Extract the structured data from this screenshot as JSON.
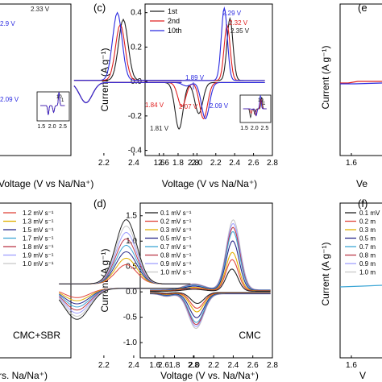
{
  "figure": {
    "axis_label_x": "Voltage (V vs Na/Na⁺)",
    "axis_label_x_bottom_left": "rs. Na/Na⁺)",
    "axis_label_x_right_top": "Ve",
    "axis_label_x_right_bottom": "V",
    "axis_label_y": "Current (A g⁻¹)",
    "panel_label_c": "(c)",
    "panel_label_d": "(d)",
    "panel_label_e": "(e",
    "panel_label_f": "(f)",
    "label_cmc_sbr": "CMC+SBR",
    "label_cmc": "CMC"
  },
  "chart_data": [
    {
      "panel": "c",
      "type": "line",
      "xlabel": "Voltage (V vs Na/Na⁺)",
      "ylabel": "Current (A g⁻¹)",
      "xlim": [
        1.45,
        2.8
      ],
      "ylim": [
        -0.43,
        0.45
      ],
      "xticks": [
        "1.6",
        "1.8",
        "2.0",
        "2.2",
        "2.4",
        "2.6",
        "2.8"
      ],
      "yticks": [
        "0.4",
        "0.2",
        "0.0",
        "-0.2",
        "-0.4"
      ],
      "legend_position": "top-left",
      "series": [
        {
          "name": "1st",
          "color": "#222222",
          "ox_peak": [
            2.35,
            0.36
          ],
          "red_peaks": [
            [
              1.81,
              -0.27
            ],
            [
              2.02,
              -0.18
            ]
          ]
        },
        {
          "name": "2nd",
          "color": "#e02020",
          "ox_peak": [
            2.32,
            0.32
          ],
          "red_peaks": [
            [
              1.84,
              -0.14
            ],
            [
              2.07,
              -0.21
            ]
          ]
        },
        {
          "name": "10th",
          "color": "#2a2ae0",
          "ox_peak": [
            2.29,
            0.42
          ],
          "red_peaks": [
            [
              1.89,
              -0.02
            ],
            [
              2.09,
              -0.21
            ]
          ]
        }
      ],
      "annotations": [
        {
          "text": "2.29 V",
          "color": "#2a2ae0"
        },
        {
          "text": "2.32 V",
          "color": "#e02020"
        },
        {
          "text": "2.35 V",
          "color": "#222222"
        },
        {
          "text": "1.89 V",
          "color": "#2a2ae0"
        },
        {
          "text": "1.84 V",
          "color": "#e02020"
        },
        {
          "text": "2.07 V",
          "color": "#e02020"
        },
        {
          "text": "2.09 V",
          "color": "#2a2ae0"
        },
        {
          "text": "1.81 V",
          "color": "#222222"
        }
      ],
      "inset": {
        "xticks": [
          "1.5",
          "2.0",
          "2.5"
        ],
        "labels": [
          "10",
          "1"
        ]
      }
    },
    {
      "panel": "d",
      "type": "line",
      "xlabel": "Voltage (V vs. Na/Na⁺)",
      "ylabel": "Current (A g⁻¹)",
      "xlim": [
        1.45,
        2.8
      ],
      "ylim": [
        -1.3,
        1.75
      ],
      "xticks": [
        "1.6",
        "1.8",
        "2.0",
        "2.2",
        "2.4",
        "2.6",
        "2.8"
      ],
      "yticks": [
        "1.5",
        "1.0",
        "0.5",
        "0.0",
        "-0.5",
        "-1.0"
      ],
      "legend_position": "top-left",
      "series": [
        {
          "name": "0.1 mV s⁻¹",
          "color": "#222222",
          "scan_rate": 0.1
        },
        {
          "name": "0.2 mV s⁻¹",
          "color": "#e0463c",
          "scan_rate": 0.2
        },
        {
          "name": "0.3 mV s⁻¹",
          "color": "#e0b000",
          "scan_rate": 0.3
        },
        {
          "name": "0.5 mV s⁻¹",
          "color": "#2a2a8a",
          "scan_rate": 0.5
        },
        {
          "name": "0.7 mV s⁻¹",
          "color": "#3fa7d6",
          "scan_rate": 0.7
        },
        {
          "name": "0.8 mV s⁻¹",
          "color": "#bb3a4a",
          "scan_rate": 0.8
        },
        {
          "name": "0.9 mV s⁻¹",
          "color": "#a0a0ff",
          "scan_rate": 0.9
        },
        {
          "name": "1.0 mV s⁻¹",
          "color": "#c8c8c8",
          "scan_rate": 1.0
        }
      ],
      "ox_peak_voltage": 2.38,
      "red_peak_voltage": 2.04,
      "peak_max_current": 1.38,
      "peak_min_current": -0.68
    }
  ],
  "partial_panels": {
    "top_left": {
      "annotations": [
        {
          "text": "2.33 V",
          "color": "#222222"
        },
        {
          "text": "2.9 V",
          "color": "#2a2ae0"
        },
        {
          "text": "2.09 V",
          "color": "#2a2ae0"
        }
      ],
      "xticks": [
        "2.2",
        "2.4",
        "2.6",
        "2.8"
      ],
      "inset_xticks": [
        "1.5",
        "2.0",
        "2.5"
      ],
      "inset_labels": [
        "10",
        "1"
      ]
    },
    "bottom_left": {
      "xticks": [
        "2.2",
        "2.4",
        "2.6",
        "2.8"
      ],
      "legend": [
        "1.2 mV s⁻¹",
        "1.3 mV s⁻¹",
        "1.5 mV s⁻¹",
        "1.7 mV s⁻¹",
        "1.8 mV s⁻¹",
        "1.9 mV s⁻¹",
        "1.0 mV s⁻¹"
      ]
    },
    "top_right": {
      "xticks": [
        "1.6"
      ]
    },
    "bottom_right": {
      "xticks": [
        "1.6"
      ],
      "legend": [
        "0.1 mV",
        "0.2 m",
        "0.3 m",
        "0.5 m",
        "0.7 m",
        "0.8 m",
        "0.9 m",
        "1.0 m"
      ]
    }
  }
}
